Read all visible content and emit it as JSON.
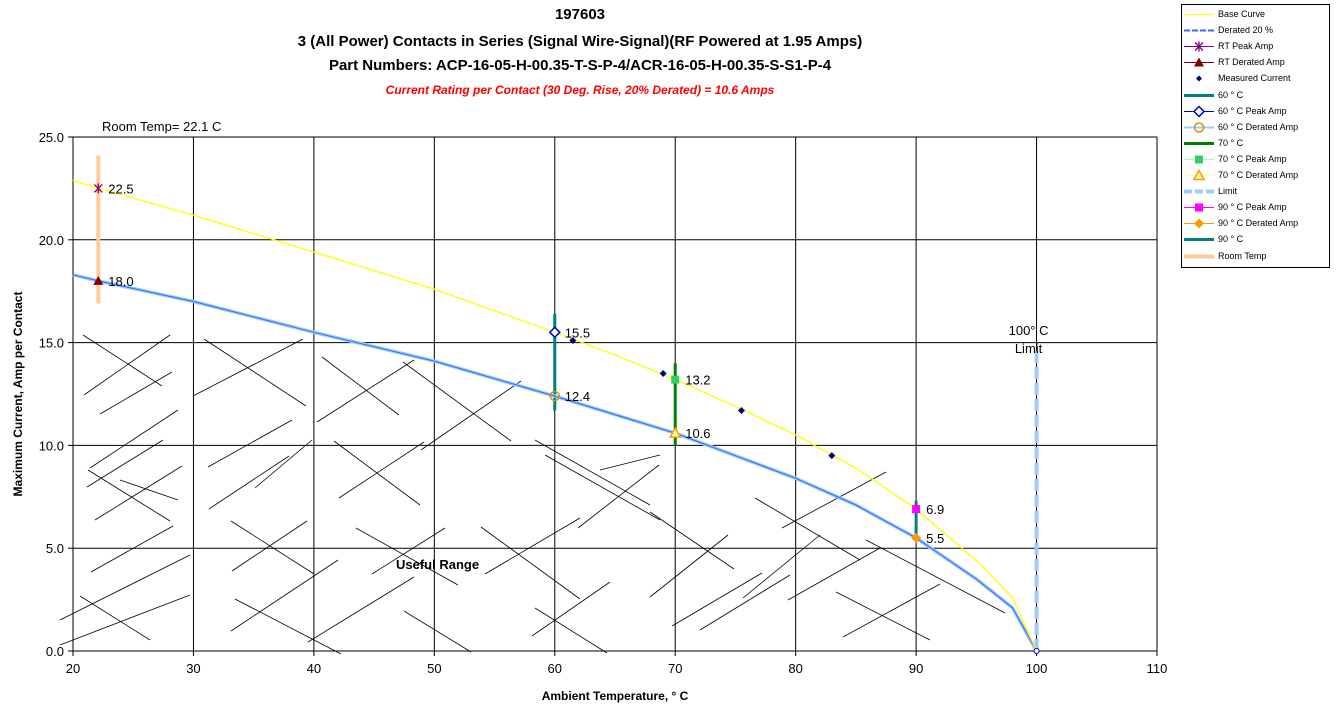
{
  "chart_data": {
    "type": "scatter",
    "title": "197603",
    "subtitle_lines": [
      "3 (All Power) Contacts in Series (Signal Wire-Signal)(RF Powered at 1.95 Amps)",
      "Part Numbers: ACP-16-05-H-00.35-T-S-P-4/ACR-16-05-H-00.35-S-S1-P-4"
    ],
    "rating_note": "Current Rating per Contact (30 Deg. Rise, 20% Derated)  = 10.6 Amps",
    "xlabel": "Ambient Temperature,  ° C",
    "ylabel": "Maximum Current, Amp per Contact",
    "xlim": [
      20,
      110
    ],
    "ylim": [
      0,
      25
    ],
    "x_ticks": [
      "20",
      "30",
      "40",
      "50",
      "60",
      "70",
      "80",
      "90",
      "100",
      "110"
    ],
    "y_ticks": [
      "0.0",
      "5.0",
      "10.0",
      "15.0",
      "20.0",
      "25.0"
    ],
    "grid": true,
    "legend_position": "right",
    "colors": {
      "base_curve": "#ffff00",
      "derated_curve": "#3366ff",
      "derated_curve_light": "#99ccff",
      "rt_peak": "#800080",
      "rt_derated": "#800000",
      "measured": "#000080",
      "c60_bar": "#008080",
      "c70_bar": "#008000",
      "limit": "#99ccff",
      "p90_peak": "#ff00ff",
      "p90_derated": "#ff9900",
      "room_temp": "#ffcc99",
      "c70_peak": "#33cc66"
    },
    "annotations": {
      "room_temp": "Room Temp= 22.1 C",
      "limit_line1": "100° C",
      "limit_line2": "Limit",
      "useful_range": "Useful Range"
    },
    "series": [
      {
        "name": "Base Curve",
        "x": [
          20,
          22.1,
          30,
          40,
          50,
          60,
          65,
          70,
          75,
          80,
          85,
          90,
          95,
          98,
          100
        ],
        "y": [
          22.9,
          22.5,
          21.2,
          19.4,
          17.6,
          15.5,
          14.4,
          13.2,
          11.9,
          10.5,
          8.9,
          6.9,
          4.4,
          2.6,
          0
        ]
      },
      {
        "name": "Derated 20 %",
        "x": [
          20,
          22.1,
          30,
          40,
          50,
          60,
          65,
          70,
          75,
          80,
          85,
          90,
          95,
          98,
          100
        ],
        "y": [
          18.3,
          18.0,
          17.0,
          15.5,
          14.1,
          12.4,
          11.5,
          10.6,
          9.5,
          8.4,
          7.1,
          5.5,
          3.5,
          2.1,
          0
        ]
      },
      {
        "name": "Measured Current",
        "x": [
          61.5,
          69,
          75.5,
          83
        ],
        "y": [
          15.1,
          13.5,
          11.7,
          9.5
        ]
      }
    ],
    "points": [
      {
        "name": "RT Peak Amp",
        "x": 22.1,
        "y": 22.5,
        "label": "22.5"
      },
      {
        "name": "RT Derated Amp",
        "x": 22.1,
        "y": 18.0,
        "label": "18.0"
      },
      {
        "name": "60  ° C Peak Amp",
        "x": 60,
        "y": 15.5,
        "label": "15.5"
      },
      {
        "name": "60  ° C Derated Amp",
        "x": 60,
        "y": 12.4,
        "label": "12.4"
      },
      {
        "name": "70  ° C Peak Amp",
        "x": 70,
        "y": 13.2,
        "label": "13.2"
      },
      {
        "name": "70  ° C Derated Amp",
        "x": 70,
        "y": 10.6,
        "label": "10.6"
      },
      {
        "name": "90  ° C Peak Amp",
        "x": 90,
        "y": 6.9,
        "label": "6.9"
      },
      {
        "name": "90  ° C Derated Amp",
        "x": 90,
        "y": 5.5,
        "label": "5.5"
      }
    ],
    "vertical_bars": [
      {
        "name": "60 ° C",
        "x": 60,
        "y_min": 11.7,
        "y_max": 16.4
      },
      {
        "name": "70  ° C",
        "x": 70,
        "y_min": 10.0,
        "y_max": 14.0
      },
      {
        "name": "90  ° C",
        "x": 90,
        "y_min": 5.4,
        "y_max": 7.3
      },
      {
        "name": "Room Temp",
        "x": 22.1,
        "y_min": 16.9,
        "y_max": 24.1
      },
      {
        "name": "Limit",
        "x": 100,
        "y_min": 0,
        "y_max": 14.7
      }
    ],
    "legend": [
      "Base Curve",
      "Derated 20 %",
      "RT Peak Amp",
      "RT Derated Amp",
      "Measured Current",
      "60 ° C",
      "60  ° C Peak Amp",
      "60  ° C Derated Amp",
      "70  ° C",
      "70  ° C Peak Amp",
      "70  ° C Derated Amp",
      "Limit",
      "90  ° C Peak Amp",
      "90  ° C Derated Amp",
      "90  ° C",
      "Room Temp"
    ]
  }
}
